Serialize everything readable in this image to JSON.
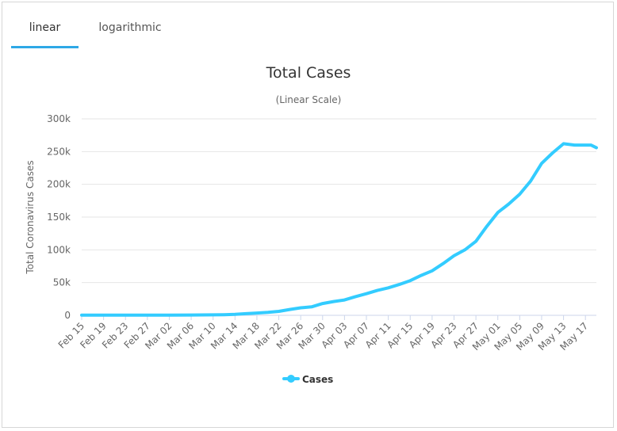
{
  "tabs": [
    {
      "label": "linear",
      "active": true
    },
    {
      "label": "logarithmic",
      "active": false
    }
  ],
  "colors": {
    "series": "#33ccff",
    "tab_underline": "#2ea8e6",
    "grid": "#e6e6e6"
  },
  "chart_data": {
    "type": "line",
    "title": "Total Cases",
    "subtitle": "(Linear Scale)",
    "ylabel": "Total Coronavirus Cases",
    "xlabel": "",
    "ylim": [
      0,
      300000
    ],
    "yticks": [
      0,
      50000,
      100000,
      150000,
      200000,
      250000,
      300000
    ],
    "ytick_labels": [
      "0",
      "50k",
      "100k",
      "150k",
      "200k",
      "250k",
      "300k"
    ],
    "xtick_labels": [
      "Feb 15",
      "Feb 19",
      "Feb 23",
      "Feb 27",
      "Mar 02",
      "Mar 06",
      "Mar 10",
      "Mar 14",
      "Mar 18",
      "Mar 22",
      "Mar 26",
      "Mar 30",
      "Apr 03",
      "Apr 07",
      "Apr 11",
      "Apr 15",
      "Apr 19",
      "Apr 23",
      "Apr 27",
      "May 01",
      "May 05",
      "May 09",
      "May 13",
      "May 17"
    ],
    "legend": "bottom-center",
    "series": [
      {
        "name": "Cases",
        "x": [
          0,
          4,
          8,
          12,
          16,
          20,
          24,
          26,
          28,
          30,
          32,
          34,
          36,
          38,
          40,
          42,
          44,
          46,
          48,
          50,
          52,
          54,
          56,
          58,
          60,
          62,
          64,
          66,
          68,
          70,
          72,
          74,
          76,
          78,
          80,
          82,
          84,
          86,
          88,
          90,
          92,
          93,
          94
        ],
        "values": [
          200,
          200,
          300,
          300,
          400,
          500,
          700,
          1000,
          1500,
          2500,
          3500,
          4500,
          6000,
          9000,
          11500,
          13000,
          18000,
          21000,
          23500,
          28500,
          33000,
          38000,
          42000,
          47000,
          53000,
          61000,
          68000,
          79000,
          91000,
          100000,
          113000,
          136000,
          157000,
          170000,
          185000,
          205000,
          232000,
          248000,
          262000,
          260000,
          260000,
          260000,
          256000
        ]
      }
    ]
  }
}
